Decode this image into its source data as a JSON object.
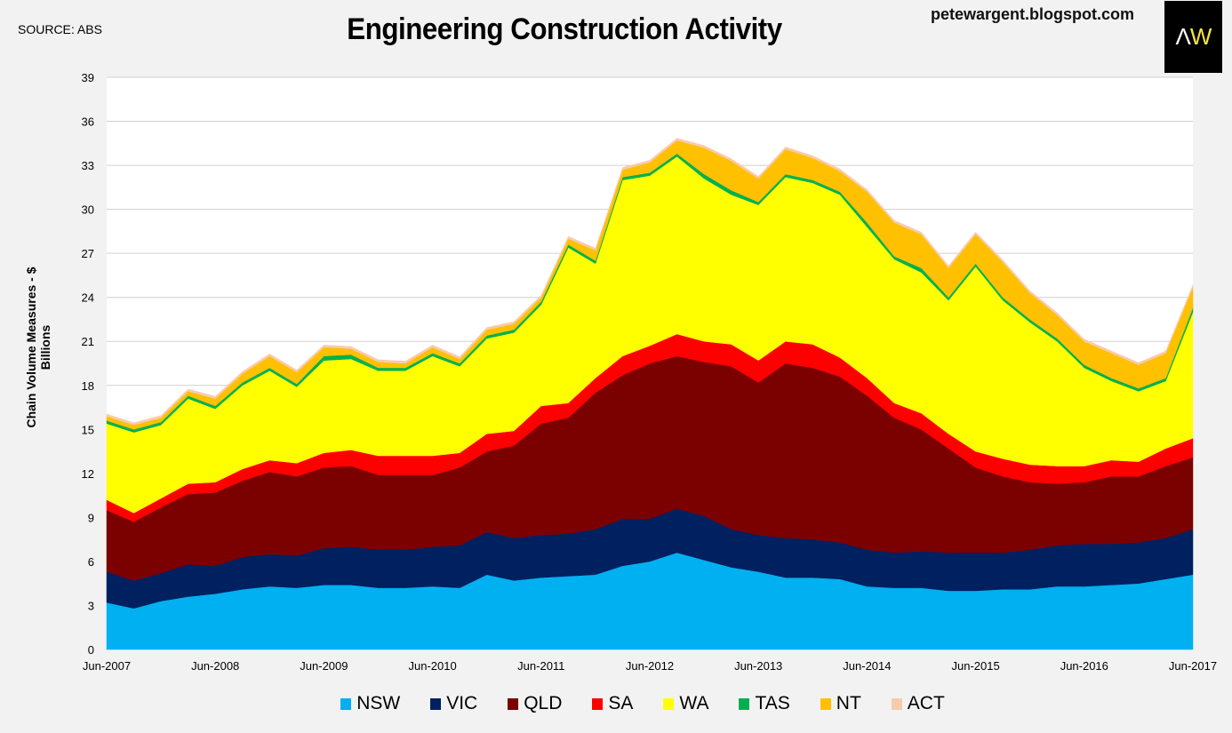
{
  "header": {
    "source": "SOURCE: ABS",
    "title": "Engineering Construction Activity",
    "blog": "petewargent.blogspot.com",
    "logo": {
      "left": "Λ",
      "right": "W"
    }
  },
  "chart_data": {
    "type": "area",
    "stacked": true,
    "title": "Engineering Construction Activity",
    "xlabel": "",
    "ylabel": "Chain Volume Measures - $ Billions",
    "ylim": [
      0,
      39
    ],
    "yticks": [
      0,
      3,
      6,
      9,
      12,
      15,
      18,
      21,
      24,
      27,
      30,
      33,
      36,
      39
    ],
    "grid": true,
    "legend_position": "bottom",
    "x_tick_labels": [
      "Jun-2007",
      "Jun-2008",
      "Jun-2009",
      "Jun-2010",
      "Jun-2011",
      "Jun-2012",
      "Jun-2013",
      "Jun-2014",
      "Jun-2015",
      "Jun-2016",
      "Jun-2017"
    ],
    "x": [
      "Jun-2007",
      "Sep-2007",
      "Dec-2007",
      "Mar-2008",
      "Jun-2008",
      "Sep-2008",
      "Dec-2008",
      "Mar-2009",
      "Jun-2009",
      "Sep-2009",
      "Dec-2009",
      "Mar-2010",
      "Jun-2010",
      "Sep-2010",
      "Dec-2010",
      "Mar-2011",
      "Jun-2011",
      "Sep-2011",
      "Dec-2011",
      "Mar-2012",
      "Jun-2012",
      "Sep-2012",
      "Dec-2012",
      "Mar-2013",
      "Jun-2013",
      "Sep-2013",
      "Dec-2013",
      "Mar-2014",
      "Jun-2014",
      "Sep-2014",
      "Dec-2014",
      "Mar-2015",
      "Jun-2015",
      "Sep-2015",
      "Dec-2015",
      "Mar-2016",
      "Jun-2016",
      "Sep-2016",
      "Dec-2016",
      "Mar-2017",
      "Jun-2017"
    ],
    "series": [
      {
        "name": "NSW",
        "color": "#00b0f0",
        "values": [
          3.2,
          2.8,
          3.3,
          3.6,
          3.8,
          4.1,
          4.3,
          4.2,
          4.4,
          4.4,
          4.2,
          4.2,
          4.3,
          4.2,
          5.1,
          4.7,
          4.9,
          5.0,
          5.1,
          5.7,
          6.0,
          6.6,
          6.1,
          5.6,
          5.3,
          4.9,
          4.9,
          4.8,
          4.3,
          4.2,
          4.2,
          4.0,
          4.0,
          4.1,
          4.1,
          4.3,
          4.3,
          4.4,
          4.5,
          4.8,
          5.1
        ]
      },
      {
        "name": "VIC",
        "color": "#002060",
        "values": [
          2.1,
          1.9,
          1.9,
          2.2,
          1.9,
          2.2,
          2.2,
          2.2,
          2.5,
          2.6,
          2.6,
          2.6,
          2.7,
          2.9,
          2.9,
          2.9,
          2.9,
          2.9,
          3.1,
          3.2,
          2.9,
          3.0,
          3.0,
          2.6,
          2.5,
          2.7,
          2.6,
          2.5,
          2.5,
          2.4,
          2.5,
          2.6,
          2.6,
          2.5,
          2.7,
          2.8,
          2.9,
          2.8,
          2.8,
          2.8,
          3.1
        ]
      },
      {
        "name": "QLD",
        "color": "#7b0000",
        "values": [
          4.2,
          4.0,
          4.5,
          4.8,
          5.0,
          5.2,
          5.6,
          5.4,
          5.5,
          5.5,
          5.1,
          5.1,
          4.9,
          5.3,
          5.5,
          6.3,
          7.6,
          7.9,
          9.3,
          9.8,
          10.6,
          10.4,
          10.5,
          11.1,
          10.4,
          11.9,
          11.7,
          11.3,
          10.5,
          9.2,
          8.3,
          7.1,
          5.8,
          5.2,
          4.6,
          4.2,
          4.2,
          4.6,
          4.5,
          4.9,
          4.9
        ]
      },
      {
        "name": "SA",
        "color": "#ff0000",
        "values": [
          0.7,
          0.6,
          0.6,
          0.7,
          0.7,
          0.8,
          0.8,
          0.9,
          1.0,
          1.1,
          1.3,
          1.3,
          1.3,
          1.0,
          1.2,
          1.0,
          1.2,
          1.0,
          1.0,
          1.3,
          1.2,
          1.5,
          1.4,
          1.5,
          1.5,
          1.5,
          1.6,
          1.3,
          1.2,
          1.0,
          1.1,
          1.0,
          1.1,
          1.2,
          1.2,
          1.2,
          1.1,
          1.1,
          1.0,
          1.2,
          1.3
        ]
      },
      {
        "name": "WA",
        "color": "#ffff00",
        "values": [
          5.2,
          5.5,
          5.0,
          5.8,
          5.0,
          5.7,
          6.1,
          5.2,
          6.3,
          6.2,
          5.8,
          5.8,
          6.8,
          5.9,
          6.5,
          6.7,
          6.9,
          10.6,
          7.8,
          12.0,
          11.6,
          12.1,
          11.1,
          10.2,
          10.6,
          11.2,
          11.0,
          11.1,
          10.3,
          9.8,
          9.6,
          9.1,
          12.6,
          10.8,
          9.7,
          8.5,
          6.7,
          5.4,
          4.8,
          4.6,
          8.6
        ]
      },
      {
        "name": "TAS",
        "color": "#00b050",
        "values": [
          0.2,
          0.2,
          0.2,
          0.2,
          0.2,
          0.2,
          0.2,
          0.2,
          0.3,
          0.3,
          0.2,
          0.2,
          0.2,
          0.2,
          0.2,
          0.2,
          0.2,
          0.2,
          0.2,
          0.2,
          0.2,
          0.2,
          0.3,
          0.3,
          0.2,
          0.2,
          0.2,
          0.2,
          0.3,
          0.2,
          0.3,
          0.2,
          0.2,
          0.2,
          0.2,
          0.2,
          0.2,
          0.2,
          0.2,
          0.2,
          0.3
        ]
      },
      {
        "name": "NT",
        "color": "#ffc000",
        "values": [
          0.3,
          0.3,
          0.3,
          0.3,
          0.5,
          0.6,
          0.8,
          0.8,
          0.6,
          0.4,
          0.4,
          0.3,
          0.4,
          0.3,
          0.4,
          0.4,
          0.3,
          0.4,
          0.7,
          0.5,
          0.7,
          0.9,
          1.8,
          2.0,
          1.6,
          1.7,
          1.5,
          1.4,
          2.1,
          2.3,
          2.3,
          2.0,
          2.0,
          2.4,
          1.8,
          1.6,
          1.6,
          1.7,
          1.6,
          1.7,
          1.4
        ]
      },
      {
        "name": "ACT",
        "color": "#f8cbad",
        "values": [
          0.15,
          0.15,
          0.15,
          0.15,
          0.15,
          0.15,
          0.15,
          0.15,
          0.15,
          0.15,
          0.15,
          0.15,
          0.15,
          0.15,
          0.15,
          0.15,
          0.15,
          0.15,
          0.15,
          0.15,
          0.15,
          0.15,
          0.15,
          0.15,
          0.15,
          0.15,
          0.15,
          0.15,
          0.15,
          0.15,
          0.15,
          0.15,
          0.15,
          0.15,
          0.15,
          0.15,
          0.15,
          0.15,
          0.15,
          0.15,
          0.15
        ]
      }
    ]
  }
}
